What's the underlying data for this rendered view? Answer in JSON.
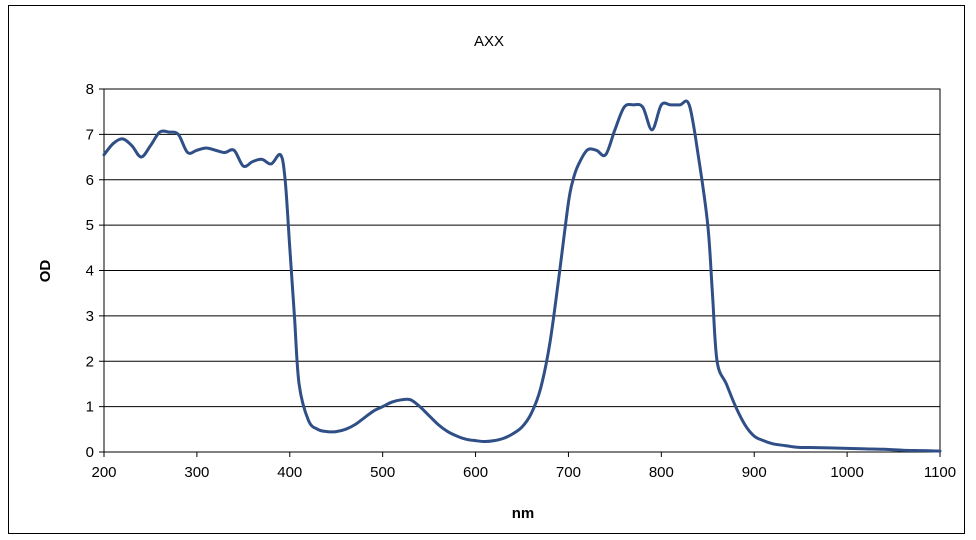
{
  "chart_data": {
    "type": "line",
    "title": "AXX",
    "xlabel": "nm",
    "ylabel": "OD",
    "xlim": [
      200,
      1100
    ],
    "ylim": [
      0,
      8
    ],
    "x_ticks": [
      200,
      300,
      400,
      500,
      600,
      700,
      800,
      900,
      1000,
      1100
    ],
    "y_ticks": [
      0,
      1,
      2,
      3,
      4,
      5,
      6,
      7,
      8
    ],
    "grid": "horizontal",
    "legend": "none",
    "series_color": "#2F4F86",
    "series": [
      {
        "x": [
          200,
          210,
          220,
          230,
          240,
          250,
          260,
          270,
          280,
          290,
          300,
          310,
          320,
          330,
          340,
          350,
          360,
          370,
          380,
          390,
          395,
          400,
          405,
          410,
          420,
          430,
          440,
          450,
          460,
          470,
          480,
          490,
          500,
          510,
          520,
          530,
          540,
          550,
          560,
          570,
          580,
          590,
          600,
          610,
          620,
          630,
          640,
          650,
          660,
          670,
          680,
          690,
          700,
          705,
          710,
          720,
          730,
          740,
          750,
          760,
          770,
          780,
          790,
          800,
          810,
          820,
          830,
          840,
          850,
          855,
          860,
          870,
          880,
          890,
          900,
          910,
          920,
          930,
          940,
          950,
          960,
          980,
          1000,
          1020,
          1040,
          1060,
          1080,
          1100
        ],
        "y": [
          6.55,
          6.8,
          6.9,
          6.75,
          6.5,
          6.75,
          7.05,
          7.05,
          7.0,
          6.6,
          6.65,
          6.7,
          6.65,
          6.6,
          6.65,
          6.3,
          6.4,
          6.45,
          6.35,
          6.55,
          6.0,
          4.5,
          3.0,
          1.5,
          0.7,
          0.5,
          0.45,
          0.45,
          0.5,
          0.6,
          0.75,
          0.9,
          1.0,
          1.1,
          1.15,
          1.15,
          1.0,
          0.8,
          0.6,
          0.45,
          0.35,
          0.28,
          0.25,
          0.23,
          0.25,
          0.3,
          0.4,
          0.55,
          0.85,
          1.4,
          2.4,
          3.9,
          5.5,
          6.0,
          6.3,
          6.65,
          6.65,
          6.55,
          7.1,
          7.6,
          7.65,
          7.6,
          7.1,
          7.65,
          7.65,
          7.65,
          7.65,
          6.5,
          5.0,
          3.5,
          2.0,
          1.5,
          1.0,
          0.6,
          0.35,
          0.25,
          0.18,
          0.15,
          0.12,
          0.1,
          0.1,
          0.09,
          0.08,
          0.07,
          0.06,
          0.04,
          0.03,
          0.02
        ]
      }
    ]
  }
}
